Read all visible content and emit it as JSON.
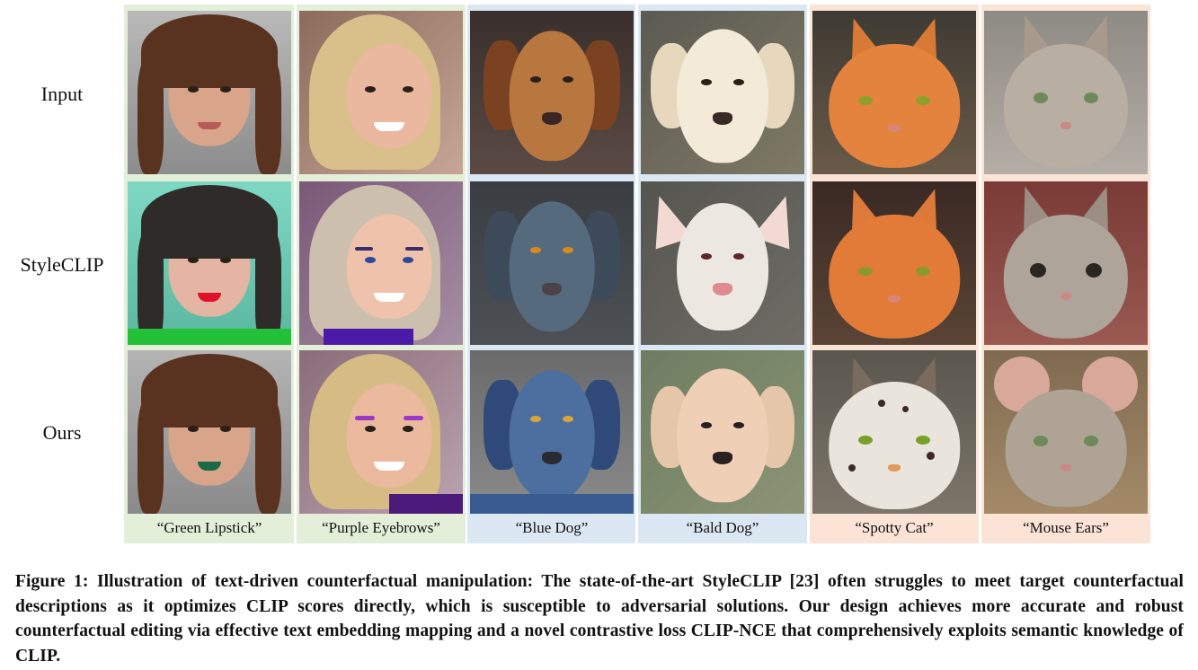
{
  "row_labels": [
    "Input",
    "StyleCLIP",
    "Ours"
  ],
  "columns": [
    {
      "caption": "“Green Lipstick”",
      "group_color": "#e3efd9"
    },
    {
      "caption": "“Purple Eyebrows”",
      "group_color": "#e3efd9"
    },
    {
      "caption": "“Blue Dog”",
      "group_color": "#dbe7f3"
    },
    {
      "caption": "“Bald Dog”",
      "group_color": "#dbe7f3"
    },
    {
      "caption": "“Spotty Cat”",
      "group_color": "#fbe3d6"
    },
    {
      "caption": "“Mouse Ears”",
      "group_color": "#fbe3d6"
    }
  ],
  "figure_caption": "Figure 1: Illustration of text-driven counterfactual manipulation: The state-of-the-art StyleCLIP [23] often struggles to meet target counterfactual descriptions as it optimizes CLIP scores directly, which is susceptible to adversarial solutions. Our design achieves more accurate and robust counterfactual editing via effective text embedding mapping and a novel contrastive loss CLIP-NCE that comprehensively exploits semantic knowledge of CLIP."
}
